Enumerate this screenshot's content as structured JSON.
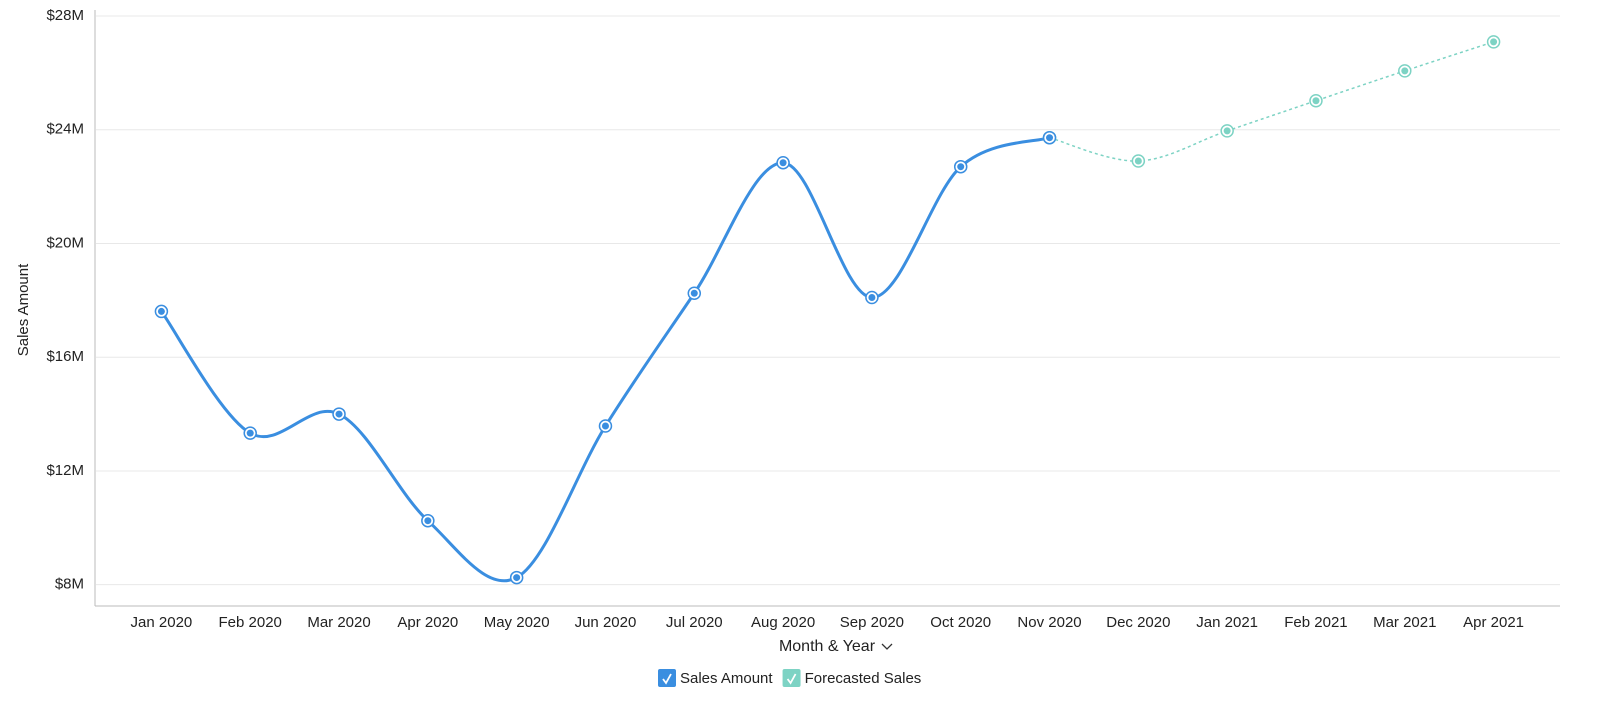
{
  "chart_data": {
    "type": "line",
    "y_label": "Sales Amount",
    "x_label": "Month & Year",
    "categories": [
      "Jan 2020",
      "Feb 2020",
      "Mar 2020",
      "Apr 2020",
      "May 2020",
      "Jun 2020",
      "Jul 2020",
      "Aug 2020",
      "Sep 2020",
      "Oct 2020",
      "Nov 2020",
      "Dec 2020",
      "Jan 2021",
      "Feb 2021",
      "Mar 2021",
      "Apr 2021"
    ],
    "series": [
      {
        "name": "Sales Amount",
        "color": "#3a8ee0",
        "dashed": false,
        "values": [
          17.61,
          13.33,
          14.0,
          10.25,
          8.25,
          13.58,
          18.25,
          22.84,
          18.1,
          22.7,
          23.72,
          null,
          null,
          null,
          null,
          null
        ]
      },
      {
        "name": "Forecasted Sales",
        "color": "#7dd3c4",
        "dashed": true,
        "values": [
          null,
          null,
          null,
          null,
          null,
          null,
          null,
          null,
          null,
          null,
          23.72,
          22.9,
          23.96,
          25.02,
          26.07,
          27.09
        ]
      }
    ],
    "ylim": [
      7.25,
      28
    ],
    "yticks": [
      {
        "value": 8,
        "label": "$8M"
      },
      {
        "value": 12,
        "label": "$12M"
      },
      {
        "value": 16,
        "label": "$16M"
      },
      {
        "value": 20,
        "label": "$20M"
      },
      {
        "value": 24,
        "label": "$24M"
      },
      {
        "value": 28,
        "label": "$28M"
      }
    ],
    "grid": true,
    "legend": "bottom"
  }
}
